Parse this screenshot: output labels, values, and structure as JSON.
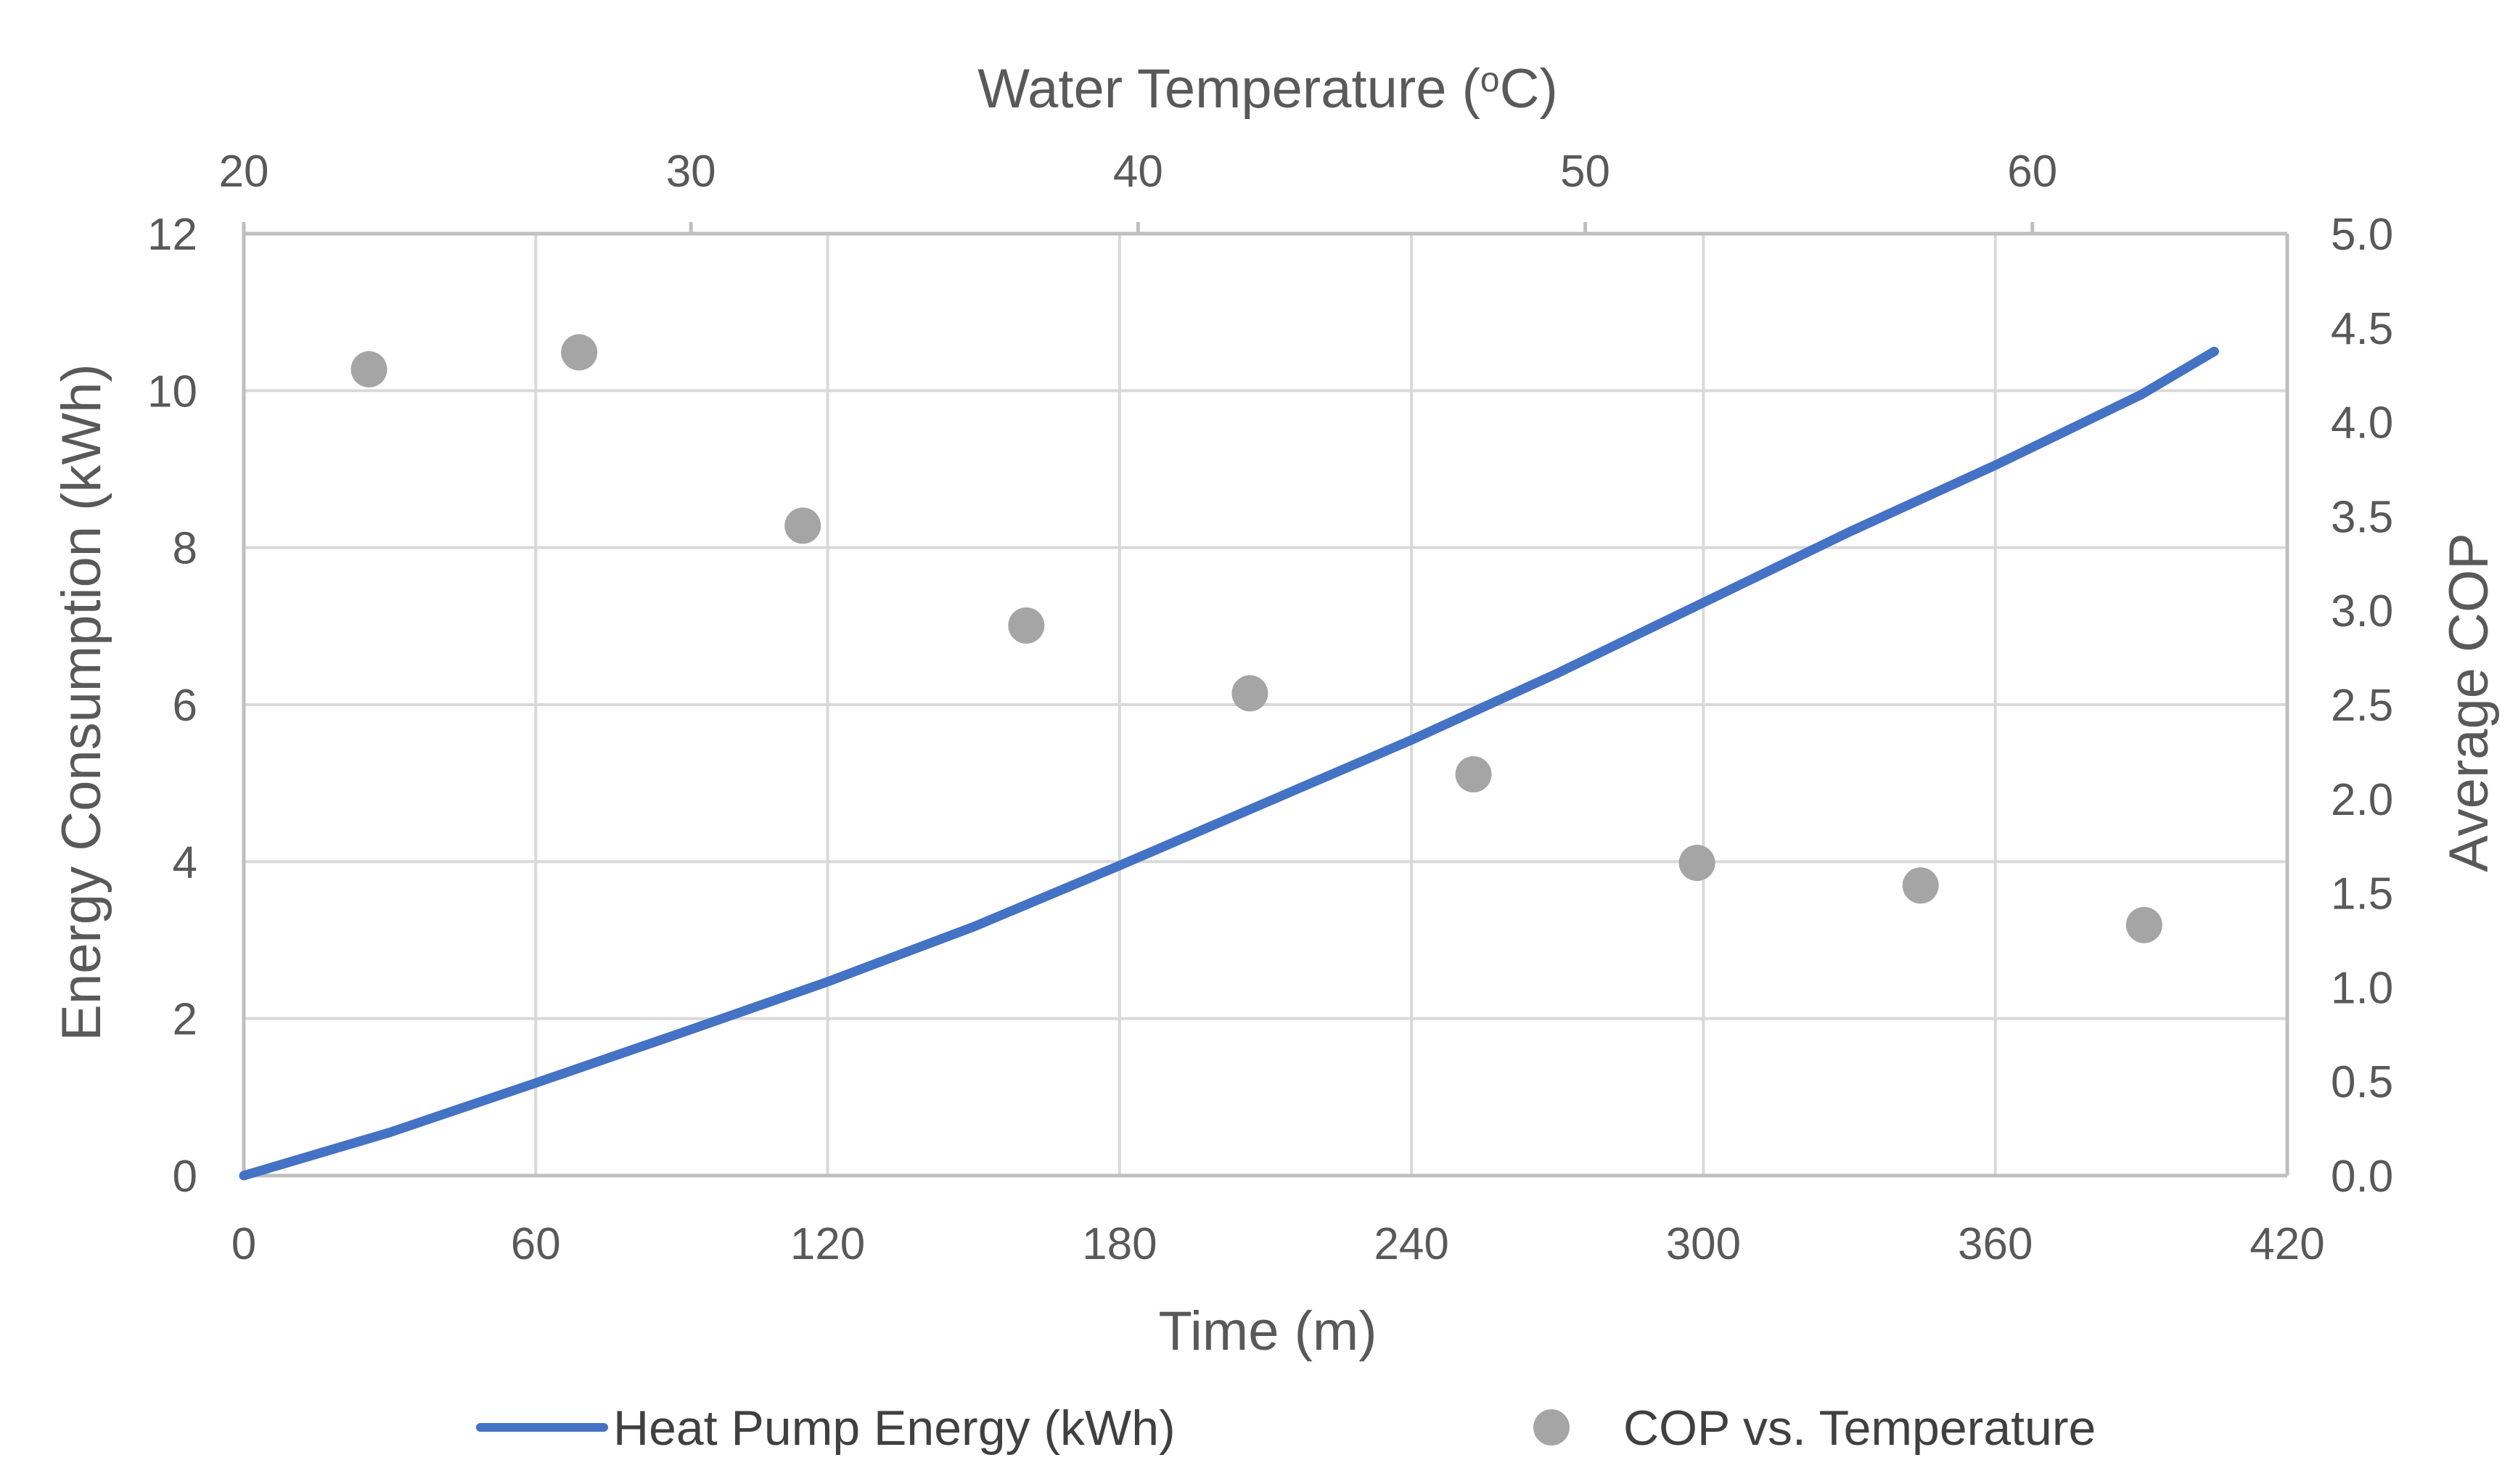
{
  "chart_data": {
    "type": "line+scatter",
    "title": "",
    "x_bottom": {
      "label": "Time (m)",
      "range": [
        0,
        420
      ],
      "ticks": [
        0,
        60,
        120,
        180,
        240,
        300,
        360,
        420
      ],
      "tick_labels": [
        "0",
        "60",
        "120",
        "180",
        "240",
        "300",
        "360",
        "420"
      ]
    },
    "x_top": {
      "label_main": "Water Temperature (",
      "label_sup": "o",
      "label_end": "C)",
      "range": [
        20,
        65.7
      ],
      "ticks": [
        20,
        30,
        40,
        50,
        60
      ],
      "tick_labels": [
        "20",
        "30",
        "40",
        "50",
        "60"
      ]
    },
    "y_left": {
      "label": "Energy Consumption (kWh)",
      "range": [
        0,
        12
      ],
      "ticks": [
        0,
        2,
        4,
        6,
        8,
        10,
        12
      ],
      "tick_labels": [
        "0",
        "2",
        "4",
        "6",
        "8",
        "10",
        "12"
      ]
    },
    "y_right": {
      "label": "Average COP",
      "range": [
        0,
        5
      ],
      "ticks": [
        0,
        0.5,
        1,
        1.5,
        2,
        2.5,
        3,
        3.5,
        4,
        4.5,
        5
      ],
      "tick_labels": [
        "0.0",
        "0.5",
        "1.0",
        "1.5",
        "2.0",
        "2.5",
        "3.0",
        "3.5",
        "4.0",
        "4.5",
        "5.0"
      ]
    },
    "series": [
      {
        "name": "Heat Pump Energy (kWh)",
        "kind": "line",
        "axes": "bottom-left",
        "color": "#4472C4",
        "x": [
          0,
          30,
          60,
          90,
          120,
          150,
          180,
          210,
          240,
          270,
          300,
          330,
          360,
          390,
          405
        ],
        "y": [
          0,
          0.55,
          1.18,
          1.82,
          2.47,
          3.17,
          3.95,
          4.75,
          5.55,
          6.4,
          7.3,
          8.2,
          9.05,
          9.95,
          10.5
        ]
      },
      {
        "name": "COP vs. Temperature",
        "kind": "scatter",
        "axes": "top-right",
        "color": "#A5A5A5",
        "x": [
          22.8,
          27.5,
          32.5,
          37.5,
          42.5,
          47.5,
          52.5,
          57.5,
          62.5
        ],
        "y": [
          4.28,
          4.37,
          3.45,
          2.92,
          2.56,
          2.13,
          1.66,
          1.54,
          1.33
        ]
      }
    ],
    "legend": {
      "position": "bottom",
      "items": [
        "Heat Pump Energy (kWh)",
        "COP vs. Temperature"
      ]
    },
    "grid": true
  }
}
